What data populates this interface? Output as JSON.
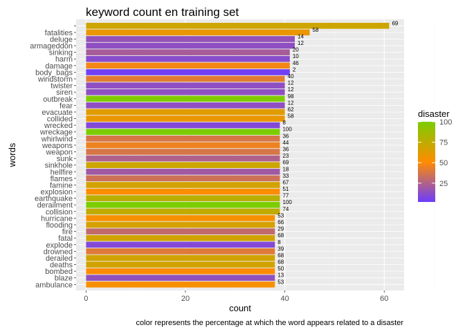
{
  "chart_data": {
    "type": "bar",
    "orientation": "horizontal",
    "title": "keyword count en training set",
    "xlabel": "count",
    "ylabel": "words",
    "caption": "color represents the percentage at which the word appears related to a disaster",
    "xlim": [
      -2,
      64
    ],
    "x_ticks": [
      0,
      20,
      40,
      60
    ],
    "grid": true,
    "legend": {
      "title": "disaster",
      "position": "right",
      "ticks": [
        25,
        50,
        75,
        100
      ],
      "range": [
        0,
        100
      ],
      "gradient": [
        "#6b3cff",
        "#ff8c00",
        "#7ccd00"
      ]
    },
    "categories": [
      "",
      "fatalities",
      "deluge",
      "armageddon",
      "sinking",
      "harm",
      "damage",
      "body_bags",
      "windstorm",
      "twister",
      "siren",
      "outbreak",
      "fear",
      "evacuate",
      "collided",
      "wrecked",
      "wreckage",
      "whirlwind",
      "weapons",
      "weapon",
      "sunk",
      "sinkhole",
      "hellfire",
      "flames",
      "famine",
      "explosion",
      "earthquake",
      "derailment",
      "collision",
      "hurricane",
      "flooding",
      "fire",
      "fatal",
      "explode",
      "drowned",
      "derailed",
      "deaths",
      "bombed",
      "blaze",
      "ambulance"
    ],
    "values": [
      61,
      45,
      42,
      42,
      41,
      41,
      41,
      41,
      40,
      40,
      40,
      40,
      40,
      40,
      40,
      39,
      39,
      39,
      39,
      39,
      39,
      39,
      39,
      39,
      39,
      39,
      39,
      39,
      39,
      38,
      38,
      38,
      38,
      38,
      38,
      38,
      38,
      38,
      38,
      38
    ],
    "disaster_pct": [
      69,
      58,
      14,
      12,
      20,
      10,
      46,
      2,
      40,
      12,
      12,
      98,
      12,
      62,
      58,
      8,
      100,
      36,
      44,
      36,
      23,
      69,
      18,
      33,
      67,
      51,
      77,
      100,
      74,
      53,
      66,
      29,
      68,
      8,
      39,
      68,
      68,
      50,
      13,
      53
    ]
  }
}
